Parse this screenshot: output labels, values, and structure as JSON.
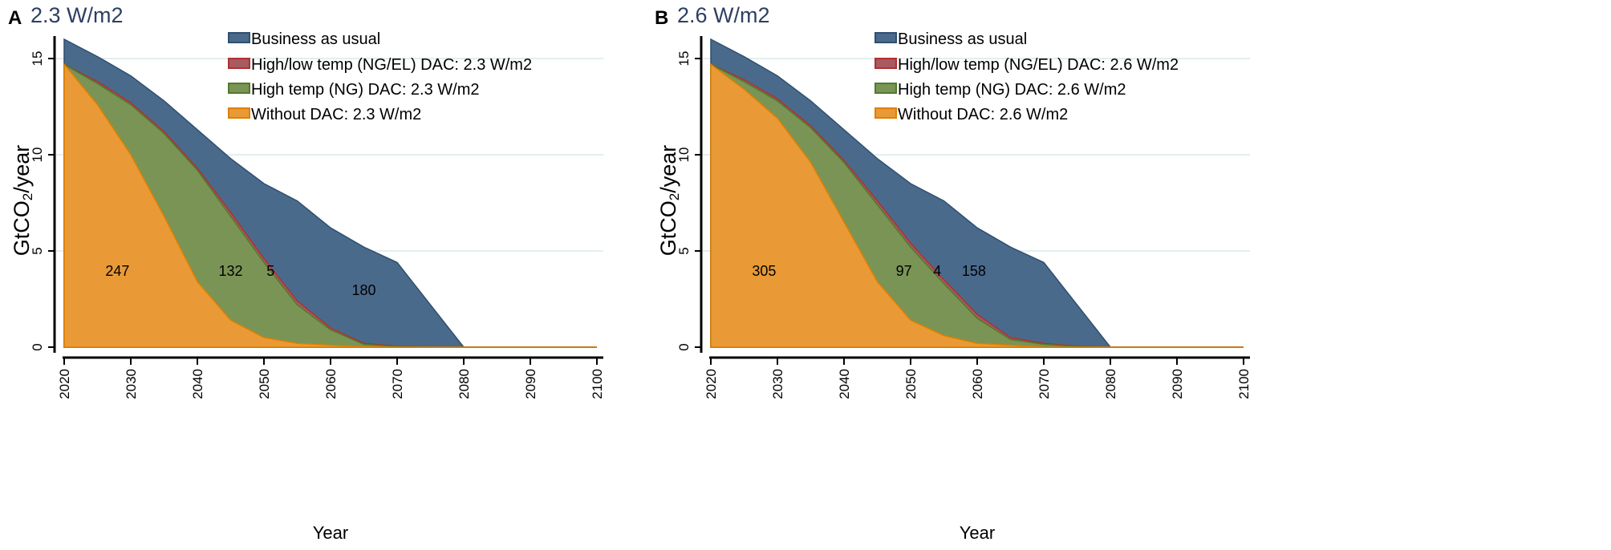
{
  "chart_data": [
    {
      "type": "area",
      "panel_label": "A",
      "title": "2.3 W/m2",
      "xlabel": "Year",
      "ylabel_main": "GtCO",
      "ylabel_sub": "2",
      "ylabel_tail": "/year",
      "xlim": [
        2020,
        2100
      ],
      "ylim": [
        0,
        16
      ],
      "xticks": [
        2020,
        2030,
        2040,
        2050,
        2060,
        2070,
        2080,
        2090,
        2100
      ],
      "yticks": [
        0,
        5,
        10,
        15
      ],
      "grid": true,
      "legend_position": "top-right",
      "x": [
        2020,
        2025,
        2030,
        2035,
        2040,
        2045,
        2050,
        2055,
        2060,
        2065,
        2070,
        2075,
        2080,
        2085,
        2090,
        2095,
        2100
      ],
      "series": [
        {
          "name": "Business as usual",
          "color": "#4a6a8c",
          "edge": "#2f4f70",
          "values": [
            16.0,
            15.1,
            14.1,
            12.8,
            11.3,
            9.8,
            8.5,
            7.6,
            6.2,
            5.2,
            4.4,
            2.2,
            0,
            0,
            0,
            0,
            0
          ]
        },
        {
          "name": "High/low temp (NG/EL) DAC: 2.3 W/m2",
          "color": "#a85a60",
          "edge": "#b03030",
          "values": [
            14.7,
            13.8,
            12.7,
            11.2,
            9.3,
            7.0,
            4.6,
            2.4,
            1.0,
            0.2,
            0.05,
            0,
            0,
            0,
            0,
            0,
            0
          ]
        },
        {
          "name": "High temp (NG) DAC: 2.3 W/m2",
          "color": "#7a9456",
          "edge": "#4f7a2a",
          "values": [
            14.7,
            13.7,
            12.6,
            11.1,
            9.2,
            6.8,
            4.4,
            2.2,
            0.9,
            0.15,
            0.03,
            0,
            0,
            0,
            0,
            0,
            0
          ]
        },
        {
          "name": "Without DAC: 2.3 W/m2",
          "color": "#e99a36",
          "edge": "#e07f00",
          "values": [
            14.7,
            12.6,
            10.0,
            6.8,
            3.4,
            1.4,
            0.5,
            0.2,
            0.1,
            0.02,
            0,
            0,
            0,
            0,
            0,
            0,
            0
          ]
        }
      ],
      "annotations": [
        {
          "text": "247",
          "x": 2028,
          "y": 4.0
        },
        {
          "text": "132",
          "x": 2045,
          "y": 4.0
        },
        {
          "text": "5",
          "x": 2051,
          "y": 4.0
        },
        {
          "text": "180",
          "x": 2065,
          "y": 3.0
        }
      ]
    },
    {
      "type": "area",
      "panel_label": "B",
      "title": "2.6 W/m2",
      "xlabel": "Year",
      "ylabel_main": "GtCO",
      "ylabel_sub": "2",
      "ylabel_tail": "/year",
      "xlim": [
        2020,
        2100
      ],
      "ylim": [
        0,
        16
      ],
      "xticks": [
        2020,
        2030,
        2040,
        2050,
        2060,
        2070,
        2080,
        2090,
        2100
      ],
      "yticks": [
        0,
        5,
        10,
        15
      ],
      "grid": true,
      "legend_position": "top-right",
      "x": [
        2020,
        2025,
        2030,
        2035,
        2040,
        2045,
        2050,
        2055,
        2060,
        2065,
        2070,
        2075,
        2080,
        2085,
        2090,
        2095,
        2100
      ],
      "series": [
        {
          "name": "Business as usual",
          "color": "#4a6a8c",
          "edge": "#2f4f70",
          "values": [
            16.0,
            15.1,
            14.1,
            12.8,
            11.3,
            9.8,
            8.5,
            7.6,
            6.2,
            5.2,
            4.4,
            2.2,
            0,
            0,
            0,
            0,
            0
          ]
        },
        {
          "name": "High/low temp (NG/EL) DAC: 2.6 W/m2",
          "color": "#a85a60",
          "edge": "#b03030",
          "values": [
            14.7,
            13.9,
            12.9,
            11.5,
            9.7,
            7.6,
            5.4,
            3.5,
            1.7,
            0.5,
            0.2,
            0.05,
            0,
            0,
            0,
            0,
            0
          ]
        },
        {
          "name": "High temp (NG) DAC: 2.6 W/m2",
          "color": "#7a9456",
          "edge": "#4f7a2a",
          "values": [
            14.7,
            13.8,
            12.8,
            11.4,
            9.6,
            7.4,
            5.2,
            3.3,
            1.5,
            0.4,
            0.15,
            0.03,
            0,
            0,
            0,
            0,
            0
          ]
        },
        {
          "name": "Without DAC: 2.6 W/m2",
          "color": "#e99a36",
          "edge": "#e07f00",
          "values": [
            14.7,
            13.4,
            11.9,
            9.6,
            6.5,
            3.4,
            1.4,
            0.6,
            0.2,
            0.1,
            0,
            0,
            0,
            0,
            0,
            0,
            0
          ]
        }
      ],
      "annotations": [
        {
          "text": "305",
          "x": 2028,
          "y": 4.0
        },
        {
          "text": "97",
          "x": 2049,
          "y": 4.0
        },
        {
          "text": "4",
          "x": 2054,
          "y": 4.0
        },
        {
          "text": "158",
          "x": 2059.5,
          "y": 4.0
        }
      ]
    }
  ]
}
